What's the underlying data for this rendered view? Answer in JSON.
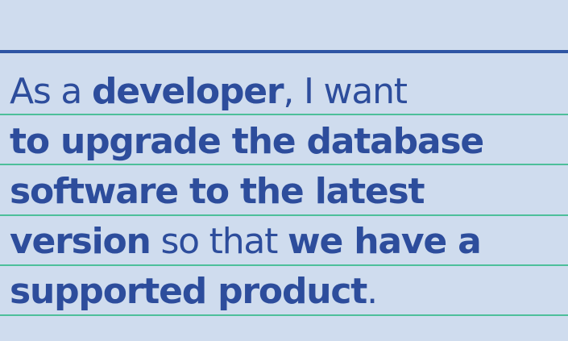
{
  "story": {
    "line1": {
      "a": "As a ",
      "b": "developer",
      "c": ", I want"
    },
    "line2": {
      "a": "to upgrade the database"
    },
    "line3": {
      "a": "software to the latest"
    },
    "line4": {
      "a": "version",
      "b": " so that ",
      "c": "we have a"
    },
    "line5": {
      "a": "supported product",
      "b": "."
    }
  },
  "colors": {
    "background": "#cfdcee",
    "text": "#2d4d9c",
    "top_rule": "#2f55a4",
    "ruled_lines": "#4dbf9a"
  }
}
